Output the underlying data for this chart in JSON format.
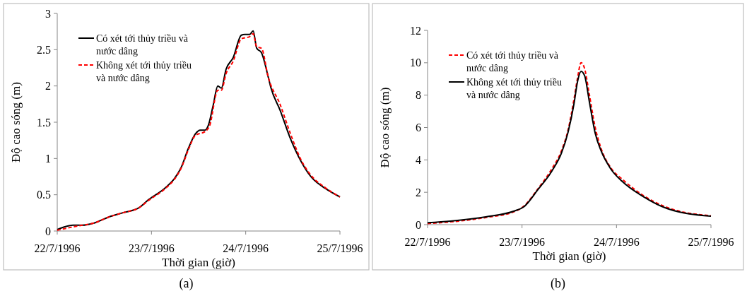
{
  "chart_data": [
    {
      "type": "line",
      "xlabel": "Thời gian (giờ)",
      "ylabel": "Độ cao sóng (m)",
      "annotations": [
        "(a)"
      ],
      "legend": "top left",
      "grid": false,
      "xlim": [
        "1996-07-22",
        "1996-07-25"
      ],
      "xticks": [
        {
          "value": "1996-07-22",
          "label": "22/7/1996"
        },
        {
          "value": "1996-07-23",
          "label": "23/7/1996"
        },
        {
          "value": "1996-07-24",
          "label": "24/7/1996"
        },
        {
          "value": "1996-07-25",
          "label": "25/7/1996"
        }
      ],
      "ylim": [
        0,
        3
      ],
      "yticks": [
        0,
        0.5,
        1,
        1.5,
        2,
        2.5,
        3
      ],
      "series": [
        {
          "name": "Có xét tới thủy triều và nước dâng",
          "color": "#000000",
          "line_style": "solid",
          "x": [
            "1996-07-22T00:00",
            "1996-07-22T02:48",
            "1996-07-22T04:00",
            "1996-07-22T06:24",
            "1996-07-22T09:24",
            "1996-07-22T13:00",
            "1996-07-22T16:36",
            "1996-07-22T20:48",
            "1996-07-22T23:12",
            "1996-07-23T03:24",
            "1996-07-23T05:48",
            "1996-07-23T07:36",
            "1996-07-23T09:24",
            "1996-07-23T11:12",
            "1996-07-23T12:24",
            "1996-07-23T13:36",
            "1996-07-23T14:30",
            "1996-07-23T15:42",
            "1996-07-23T16:54",
            "1996-07-23T17:48",
            "1996-07-23T19:00",
            "1996-07-23T20:48",
            "1996-07-23T22:54",
            "1996-07-23T23:48",
            "1996-07-24T01:00",
            "1996-07-24T01:54",
            "1996-07-24T02:48",
            "1996-07-24T04:00",
            "1996-07-24T05:48",
            "1996-07-24T06:24",
            "1996-07-24T08:48",
            "1996-07-24T11:12",
            "1996-07-24T14:12",
            "1996-07-24T16:36",
            "1996-07-24T20:12",
            "1996-07-25T00:00"
          ],
          "values": [
            0.02,
            0.07,
            0.08,
            0.08,
            0.11,
            0.19,
            0.25,
            0.32,
            0.43,
            0.59,
            0.72,
            0.88,
            1.14,
            1.34,
            1.39,
            1.39,
            1.46,
            1.73,
            2.0,
            1.97,
            2.23,
            2.39,
            2.7,
            2.71,
            2.71,
            2.76,
            2.52,
            2.46,
            2.11,
            1.98,
            1.66,
            1.3,
            0.95,
            0.75,
            0.59,
            0.47
          ]
        },
        {
          "name": "Không xét tới thủy triều và nước dâng",
          "color": "#ff0000",
          "line_style": "dashed",
          "x": [
            "1996-07-22T00:00",
            "1996-07-22T03:24",
            "1996-07-22T06:24",
            "1996-07-22T09:24",
            "1996-07-22T13:00",
            "1996-07-22T16:36",
            "1996-07-22T20:48",
            "1996-07-22T23:12",
            "1996-07-23T03:24",
            "1996-07-23T05:48",
            "1996-07-23T07:36",
            "1996-07-23T09:24",
            "1996-07-23T11:12",
            "1996-07-23T13:36",
            "1996-07-23T14:48",
            "1996-07-23T16:54",
            "1996-07-23T17:48",
            "1996-07-23T19:00",
            "1996-07-23T20:48",
            "1996-07-23T22:54",
            "1996-07-24T01:00",
            "1996-07-24T01:54",
            "1996-07-24T02:48",
            "1996-07-24T04:00",
            "1996-07-24T05:48",
            "1996-07-24T08:48",
            "1996-07-24T11:12",
            "1996-07-24T14:12",
            "1996-07-24T16:36",
            "1996-07-24T20:12",
            "1996-07-25T00:00"
          ],
          "values": [
            0.01,
            0.05,
            0.08,
            0.11,
            0.19,
            0.25,
            0.32,
            0.42,
            0.58,
            0.71,
            0.87,
            1.12,
            1.32,
            1.37,
            1.45,
            1.94,
            1.94,
            2.17,
            2.34,
            2.65,
            2.68,
            2.72,
            2.54,
            2.52,
            2.11,
            1.74,
            1.37,
            0.97,
            0.77,
            0.6,
            0.47
          ]
        }
      ]
    },
    {
      "type": "line",
      "xlabel": "Thời gian (giờ)",
      "ylabel": "Độ cao sóng (m)",
      "annotations": [
        "(b)"
      ],
      "legend": "top left",
      "grid": false,
      "xlim": [
        "1996-07-22",
        "1996-07-25"
      ],
      "xticks": [
        {
          "value": "1996-07-22",
          "label": "22/7/1996"
        },
        {
          "value": "1996-07-23",
          "label": "23/7/1996"
        },
        {
          "value": "1996-07-24",
          "label": "24/7/1996"
        },
        {
          "value": "1996-07-25",
          "label": "25/7/1996"
        }
      ],
      "ylim": [
        0,
        12
      ],
      "yticks": [
        0,
        2,
        4,
        6,
        8,
        10,
        12
      ],
      "series": [
        {
          "name": "Có xét tới thủy triều và nước dâng",
          "color": "#ff0000",
          "line_style": "dashed",
          "x": [
            "1996-07-22T00:00",
            "1996-07-22T05:48",
            "1996-07-22T14:48",
            "1996-07-22T22:00",
            "1996-07-23T00:24",
            "1996-07-23T04:00",
            "1996-07-23T07:36",
            "1996-07-23T10:00",
            "1996-07-23T11:42",
            "1996-07-23T13:12",
            "1996-07-23T14:06",
            "1996-07-23T15:00",
            "1996-07-23T15:54",
            "1996-07-23T17:06",
            "1996-07-23T18:36",
            "1996-07-23T20:06",
            "1996-07-23T22:30",
            "1996-07-24T01:30",
            "1996-07-24T06:54",
            "1996-07-24T12:54",
            "1996-07-25T00:00"
          ],
          "values": [
            0.07,
            0.17,
            0.44,
            0.8,
            1.13,
            2.2,
            3.46,
            4.55,
            5.86,
            7.75,
            9.06,
            10.0,
            9.64,
            8.04,
            6.0,
            4.7,
            3.53,
            2.8,
            1.79,
            1.06,
            0.55
          ]
        },
        {
          "name": "Không xét tới thủy triều và nước dâng",
          "color": "#000000",
          "line_style": "solid",
          "x": [
            "1996-07-22T00:00",
            "1996-07-22T05:48",
            "1996-07-22T14:48",
            "1996-07-22T22:00",
            "1996-07-23T00:24",
            "1996-07-23T04:00",
            "1996-07-23T07:36",
            "1996-07-23T10:00",
            "1996-07-23T11:42",
            "1996-07-23T13:12",
            "1996-07-23T14:06",
            "1996-07-23T15:00",
            "1996-07-23T15:54",
            "1996-07-23T17:06",
            "1996-07-23T18:36",
            "1996-07-23T20:06",
            "1996-07-23T22:30",
            "1996-07-24T01:30",
            "1996-07-24T06:54",
            "1996-07-24T12:54",
            "1996-07-25T00:00"
          ],
          "values": [
            0.12,
            0.22,
            0.48,
            0.84,
            1.09,
            2.15,
            3.32,
            4.41,
            5.72,
            7.46,
            8.84,
            9.47,
            9.2,
            7.6,
            5.64,
            4.55,
            3.46,
            2.66,
            1.72,
            0.99,
            0.52
          ]
        }
      ]
    }
  ]
}
